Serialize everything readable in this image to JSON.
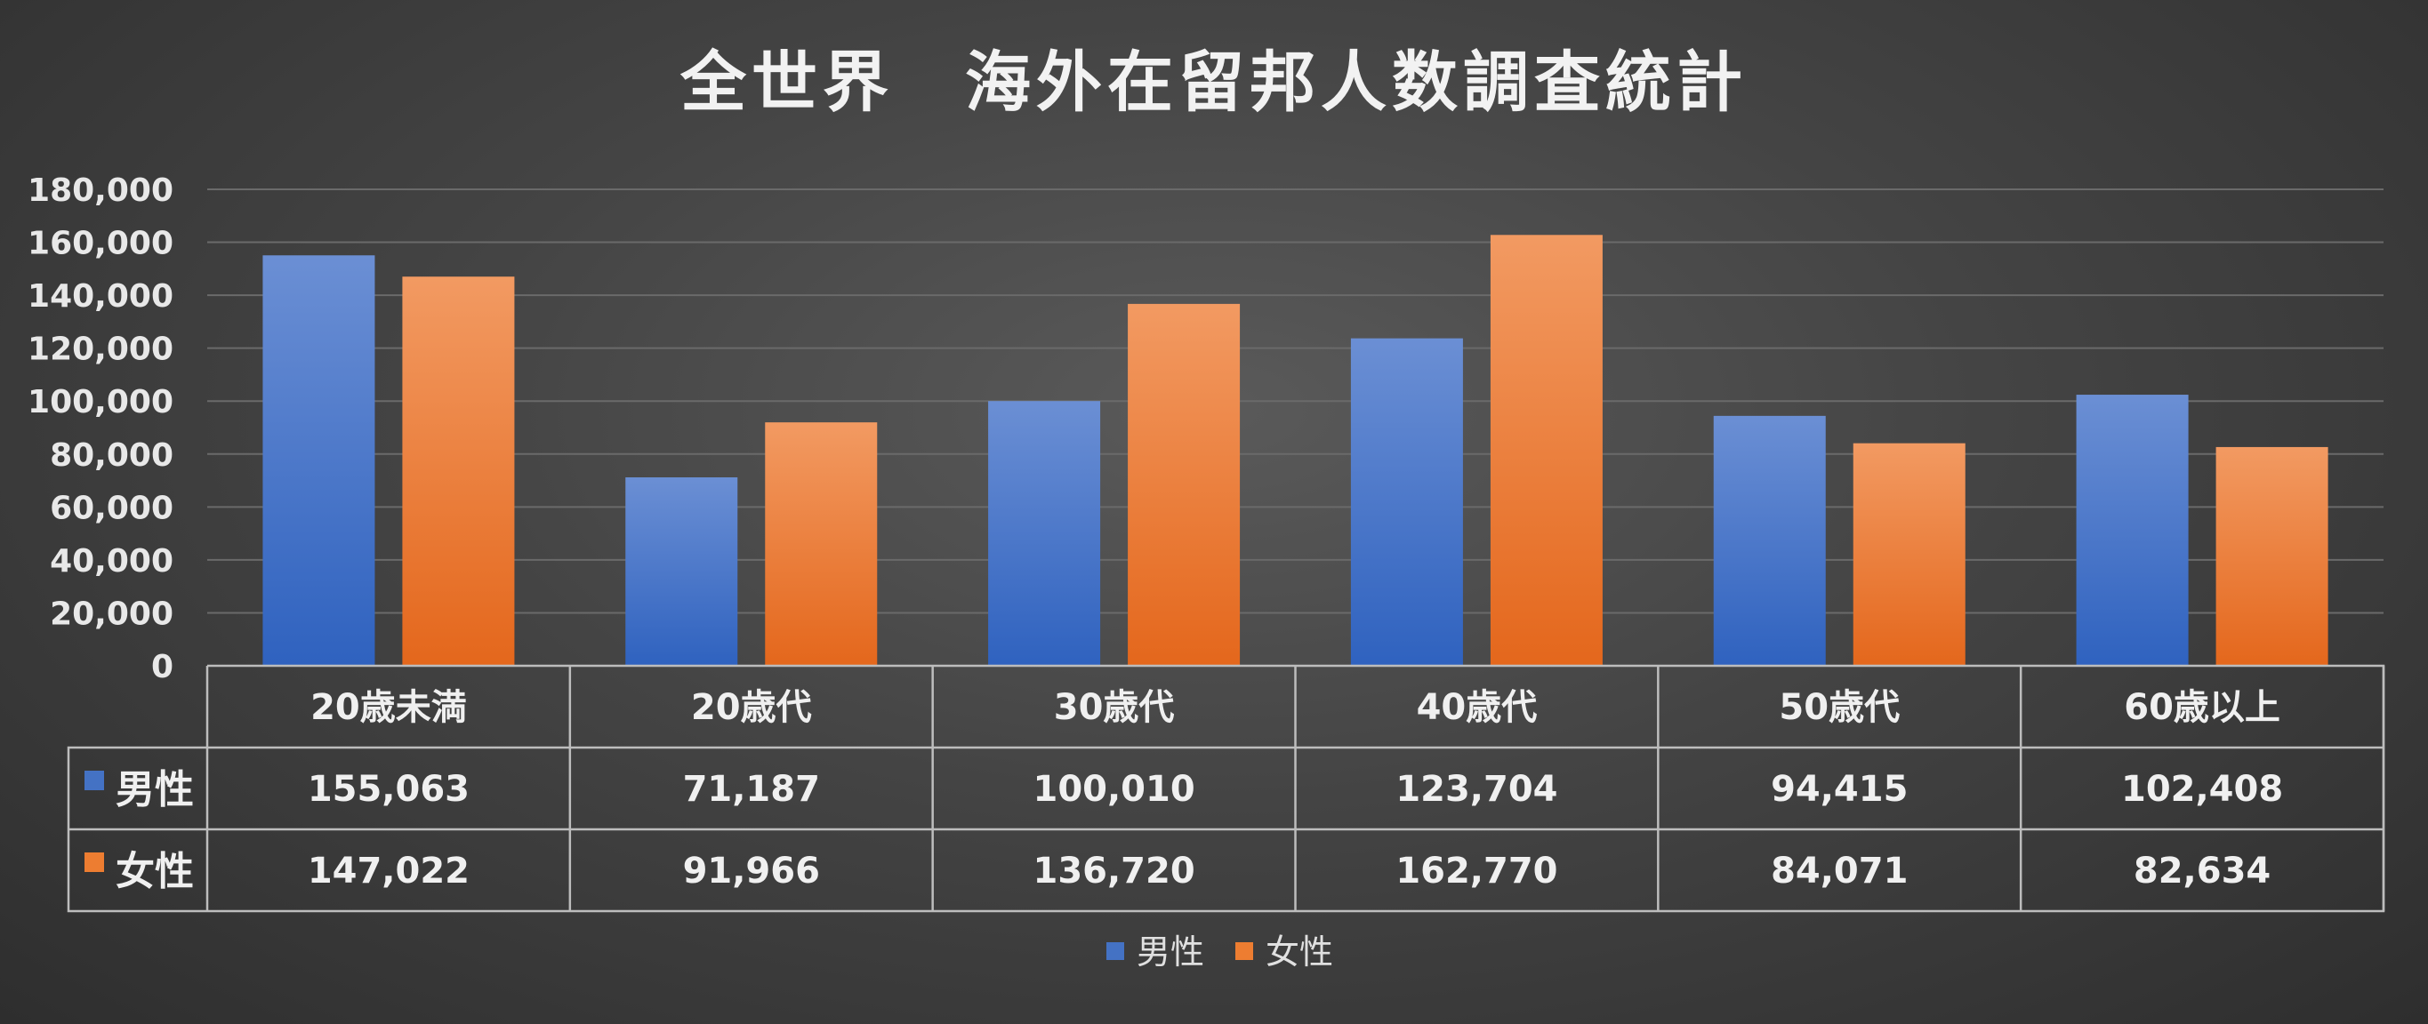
{
  "chart_data": {
    "type": "bar",
    "title": "全世界　海外在留邦人数調査統計",
    "categories": [
      "20歳未満",
      "20歳代",
      "30歳代",
      "40歳代",
      "50歳代",
      "60歳以上"
    ],
    "series": [
      {
        "name": "男性",
        "values": [
          155063,
          71187,
          100010,
          123704,
          94415,
          102408
        ],
        "labels": [
          "155,063",
          "71,187",
          "100,010",
          "123,704",
          "94,415",
          "102,408"
        ]
      },
      {
        "name": "女性",
        "values": [
          147022,
          91966,
          136720,
          162770,
          84071,
          82634
        ],
        "labels": [
          "147,022",
          "91,966",
          "136,720",
          "162,770",
          "84,071",
          "82,634"
        ]
      }
    ],
    "ylim": [
      0,
      180000
    ],
    "yticks": [
      "0",
      "20,000",
      "40,000",
      "60,000",
      "80,000",
      "100,000",
      "120,000",
      "140,000",
      "160,000",
      "180,000"
    ],
    "grid": true,
    "legend_position": "bottom",
    "data_table": true,
    "colors": {
      "男性": "#4472c4",
      "女性": "#ed7d31"
    }
  }
}
